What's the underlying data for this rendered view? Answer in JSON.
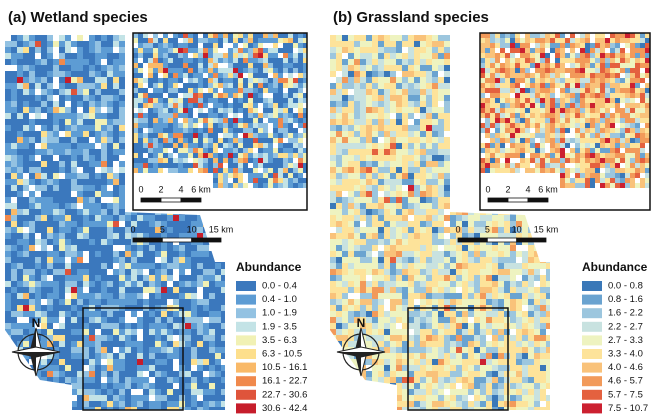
{
  "panels": [
    {
      "title": "(a) Wetland species",
      "inset_scale": [
        "0",
        "2",
        "4",
        "6 km"
      ],
      "main_scale": [
        "0",
        "5",
        "10",
        "15 km"
      ],
      "north": "N",
      "legend": {
        "title": "Abundance",
        "items": [
          {
            "label": "0.0  - 0.4",
            "color": "#3b78bd"
          },
          {
            "label": "0.4  - 1.0",
            "color": "#5d9cd4"
          },
          {
            "label": "1.0  - 1.9",
            "color": "#93c2e2"
          },
          {
            "label": "1.9  - 3.5",
            "color": "#c3e3e6"
          },
          {
            "label": "3.5  - 6.3",
            "color": "#f1f1b4"
          },
          {
            "label": "6.3  - 10.5",
            "color": "#fddf8c"
          },
          {
            "label": "10.5 - 16.1",
            "color": "#f9b968"
          },
          {
            "label": "16.1 - 22.7",
            "color": "#f0894c"
          },
          {
            "label": "22.7 - 30.6",
            "color": "#df543b"
          },
          {
            "label": "30.6 - 42.4",
            "color": "#c61d2b"
          }
        ]
      }
    },
    {
      "title": "(b) Grassland species",
      "inset_scale": [
        "0",
        "2",
        "4",
        "6 km"
      ],
      "main_scale": [
        "0",
        "5",
        "10",
        "15 km"
      ],
      "north": "N",
      "legend": {
        "title": "Abundance",
        "items": [
          {
            "label": "0.0 - 0.8",
            "color": "#3a78b8"
          },
          {
            "label": "0.8 - 1.6",
            "color": "#6aa3d0"
          },
          {
            "label": "1.6 - 2.2",
            "color": "#9cc6de"
          },
          {
            "label": "2.2 - 2.7",
            "color": "#c8e2e0"
          },
          {
            "label": "2.7 - 3.3",
            "color": "#eef3c0"
          },
          {
            "label": "3.3 - 4.0",
            "color": "#fde39a"
          },
          {
            "label": "4.0 - 4.6",
            "color": "#f9c27a"
          },
          {
            "label": "4.6 - 5.7",
            "color": "#f29a5a"
          },
          {
            "label": "5.7 - 7.5",
            "color": "#e4613f"
          },
          {
            "label": "7.5 - 10.7",
            "color": "#cc2030"
          }
        ]
      }
    }
  ]
}
